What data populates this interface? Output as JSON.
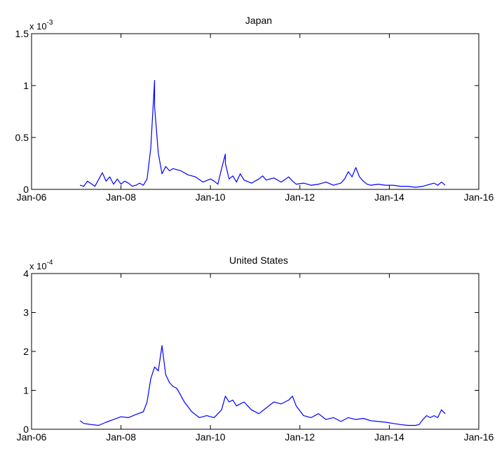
{
  "colors": {
    "line": "#0000ff",
    "axes": "#000000",
    "background": "#ffffff"
  },
  "chart_data": [
    {
      "type": "line",
      "title": "Japan",
      "xlabel": "",
      "ylabel": "",
      "multiplier_label": "x 10",
      "multiplier_exponent": "-3",
      "x_ticks": [
        "Jan-06",
        "Jan-08",
        "Jan-10",
        "Jan-12",
        "Jan-14",
        "Jan-16"
      ],
      "xlim": [
        "2006-01",
        "2016-01"
      ],
      "y_ticks": [
        "0",
        "0.5",
        "1",
        "1.5"
      ],
      "ylim": [
        0,
        1.5
      ],
      "grid": false,
      "series": [
        {
          "x": [
            "2007-02",
            "2007-03",
            "2007-04",
            "2007-06",
            "2007-08",
            "2007-09",
            "2007-10",
            "2007-11",
            "2007-12",
            "2008-01",
            "2008-02",
            "2008-03",
            "2008-04",
            "2008-05",
            "2008-06",
            "2008-07",
            "2008-08",
            "2008-09",
            "2008-10",
            "2008-10",
            "2008-11",
            "2008-12",
            "2009-01",
            "2009-02",
            "2009-03",
            "2009-05",
            "2009-07",
            "2009-09",
            "2009-11",
            "2010-01",
            "2010-02",
            "2010-03",
            "2010-04",
            "2010-05",
            "2010-05",
            "2010-06",
            "2010-07",
            "2010-08",
            "2010-09",
            "2010-10",
            "2010-12",
            "2011-02",
            "2011-03",
            "2011-04",
            "2011-06",
            "2011-08",
            "2011-10",
            "2011-11",
            "2011-12",
            "2012-02",
            "2012-04",
            "2012-06",
            "2012-08",
            "2012-10",
            "2012-12",
            "2013-01",
            "2013-02",
            "2013-03",
            "2013-04",
            "2013-05",
            "2013-06",
            "2013-07",
            "2013-08",
            "2013-10",
            "2013-12",
            "2014-02",
            "2014-04",
            "2014-06",
            "2014-08",
            "2014-10",
            "2014-12",
            "2015-01",
            "2015-02",
            "2015-03",
            "2015-04"
          ],
          "y": [
            0.04,
            0.03,
            0.08,
            0.03,
            0.16,
            0.08,
            0.12,
            0.05,
            0.1,
            0.05,
            0.08,
            0.06,
            0.03,
            0.04,
            0.06,
            0.04,
            0.1,
            0.4,
            1.05,
            0.8,
            0.35,
            0.15,
            0.22,
            0.18,
            0.2,
            0.18,
            0.14,
            0.12,
            0.07,
            0.1,
            0.08,
            0.05,
            0.2,
            0.34,
            0.25,
            0.1,
            0.13,
            0.07,
            0.15,
            0.09,
            0.06,
            0.1,
            0.13,
            0.09,
            0.11,
            0.07,
            0.12,
            0.08,
            0.05,
            0.06,
            0.04,
            0.05,
            0.07,
            0.04,
            0.06,
            0.1,
            0.17,
            0.12,
            0.21,
            0.12,
            0.08,
            0.05,
            0.04,
            0.05,
            0.04,
            0.04,
            0.03,
            0.03,
            0.02,
            0.03,
            0.05,
            0.06,
            0.04,
            0.07,
            0.04
          ]
        }
      ]
    },
    {
      "type": "line",
      "title": "United States",
      "xlabel": "",
      "ylabel": "",
      "multiplier_label": "x 10",
      "multiplier_exponent": "-4",
      "x_ticks": [
        "Jan-06",
        "Jan-08",
        "Jan-10",
        "Jan-12",
        "Jan-14",
        "Jan-16"
      ],
      "xlim": [
        "2006-01",
        "2016-01"
      ],
      "y_ticks": [
        "0",
        "1",
        "2",
        "3",
        "4"
      ],
      "ylim": [
        0,
        4
      ],
      "grid": false,
      "series": [
        {
          "x": [
            "2007-02",
            "2007-03",
            "2007-05",
            "2007-07",
            "2007-09",
            "2007-11",
            "2008-01",
            "2008-03",
            "2008-05",
            "2008-07",
            "2008-08",
            "2008-09",
            "2008-10",
            "2008-11",
            "2008-12",
            "2009-01",
            "2009-02",
            "2009-03",
            "2009-04",
            "2009-06",
            "2009-08",
            "2009-10",
            "2009-12",
            "2010-02",
            "2010-04",
            "2010-05",
            "2010-06",
            "2010-07",
            "2010-08",
            "2010-10",
            "2010-12",
            "2011-02",
            "2011-04",
            "2011-06",
            "2011-08",
            "2011-09",
            "2011-10",
            "2011-11",
            "2011-12",
            "2012-02",
            "2012-04",
            "2012-06",
            "2012-08",
            "2012-10",
            "2012-12",
            "2013-02",
            "2013-04",
            "2013-06",
            "2013-08",
            "2013-10",
            "2013-12",
            "2014-02",
            "2014-04",
            "2014-06",
            "2014-08",
            "2014-09",
            "2014-10",
            "2014-11",
            "2014-12",
            "2015-01",
            "2015-02",
            "2015-03",
            "2015-04"
          ],
          "y": [
            0.22,
            0.15,
            0.12,
            0.1,
            0.18,
            0.25,
            0.32,
            0.3,
            0.38,
            0.45,
            0.7,
            1.3,
            1.6,
            1.5,
            2.15,
            1.4,
            1.2,
            1.1,
            1.05,
            0.7,
            0.45,
            0.3,
            0.35,
            0.3,
            0.5,
            0.85,
            0.7,
            0.75,
            0.6,
            0.7,
            0.5,
            0.4,
            0.55,
            0.7,
            0.65,
            0.7,
            0.75,
            0.85,
            0.6,
            0.35,
            0.3,
            0.4,
            0.25,
            0.3,
            0.2,
            0.3,
            0.25,
            0.28,
            0.22,
            0.2,
            0.18,
            0.15,
            0.12,
            0.1,
            0.1,
            0.12,
            0.25,
            0.35,
            0.3,
            0.35,
            0.3,
            0.5,
            0.4
          ]
        }
      ]
    }
  ]
}
